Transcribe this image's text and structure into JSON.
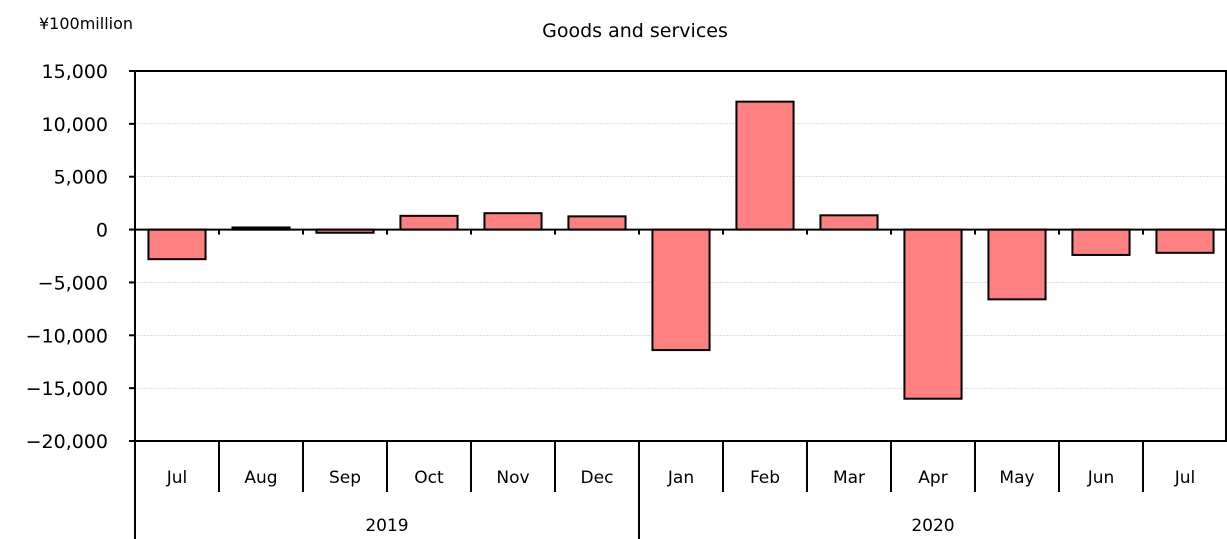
{
  "chart_data": {
    "type": "bar",
    "title": "Goods and services",
    "unit_label": "¥100million",
    "xlabel": "",
    "ylabel": "",
    "categories": [
      "Jul",
      "Aug",
      "Sep",
      "Oct",
      "Nov",
      "Dec",
      "Jan",
      "Feb",
      "Mar",
      "Apr",
      "May",
      "Jun",
      "Jul"
    ],
    "year_groups": [
      {
        "label": "2019",
        "count": 6
      },
      {
        "label": "2020",
        "count": 7
      }
    ],
    "series": [
      {
        "values": [
          -2800,
          200,
          -300,
          1300,
          1550,
          1250,
          -11400,
          12100,
          1350,
          -16000,
          -6600,
          -2400,
          -2200
        ]
      }
    ],
    "ylim": [
      -20000,
      15000
    ],
    "yticks": [
      15000,
      10000,
      5000,
      0,
      -5000,
      -10000,
      -15000,
      -20000
    ],
    "ytick_labels": [
      "15,000",
      "10,000",
      "5,000",
      "0",
      "−5,000",
      "−10,000",
      "−15,000",
      "−20,000"
    ],
    "grid": true,
    "colors": {
      "bar_fill": "#ff8080",
      "bar_stroke": "#000000",
      "grid": "#c8c8c8",
      "axis": "#000000"
    }
  }
}
